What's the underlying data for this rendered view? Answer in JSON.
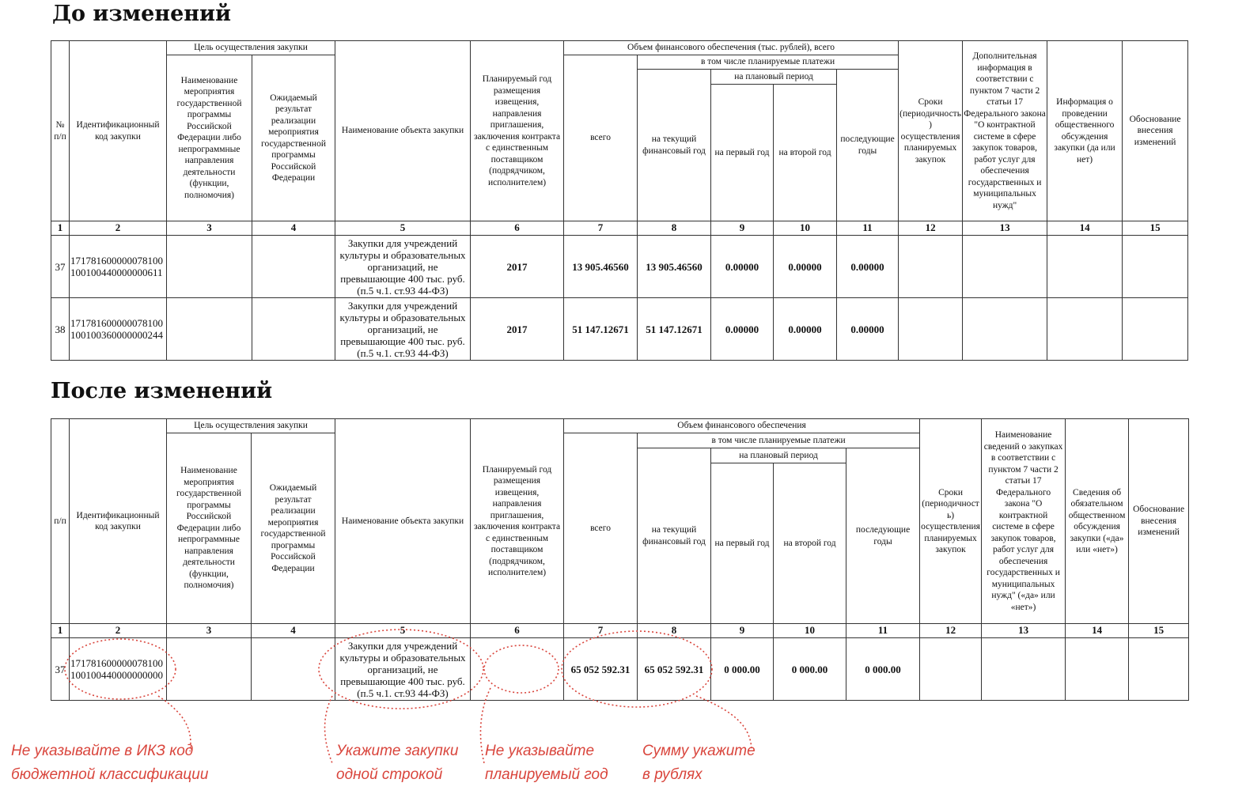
{
  "before": {
    "title": "До изменений",
    "h": {
      "c1": "№ п/п",
      "c2": "Идентификационный код закупки",
      "goal": "Цель осуществления закупки",
      "c3": "Наименование мероприятия государственной программы Российской Федерации либо непрограммные направления деятельности (функции, полномочия)",
      "c4": "Ожидаемый результат реализации мероприятия государственной программы Российской Федерации",
      "c5": "Наименование объекта закупки",
      "c6": "Планируемый год размещения извещения, направления приглашения, заключения контракта с единственным поставщиком (подрядчиком, исполнителем)",
      "fin": "Объем финансового обеспечения (тыс. рублей), всего",
      "incl": "в том числе планируемые платежи",
      "plan": "на плановый период",
      "c7": "всего",
      "c8": "на текущий финансовый год",
      "c9": "на первый год",
      "c10": "на второй год",
      "c11": "последующие годы",
      "c12": "Сроки (периодичность) осуществления планируемых закупок",
      "c13": "Дополнительная информация в соответствии с пунктом 7 части 2 статьи 17 Федерального закона \"О контрактной системе в сфере закупок товаров, работ услуг для обеспечения государственных и муниципальных нужд\"",
      "c14": "Информация о проведении общественного обсуждения закупки (да или нет)",
      "c15": "Обоснование внесения изменений"
    },
    "nums": [
      "1",
      "2",
      "3",
      "4",
      "5",
      "6",
      "7",
      "8",
      "9",
      "10",
      "11",
      "12",
      "13",
      "14",
      "15"
    ],
    "rows": [
      {
        "n": "37",
        "code": "171781600000078100 100100440000000611",
        "object": "Закупки для учреждений культуры и образовательных организаций, не превышающие 400 тыс. руб. (п.5 ч.1. ст.93 44-ФЗ)",
        "year": "2017",
        "total": "13 905.46560",
        "current": "13 905.46560",
        "first": "0.00000",
        "second": "0.00000",
        "later": "0.00000"
      },
      {
        "n": "38",
        "code": "171781600000078100 100100360000000244",
        "object": "Закупки для учреждений культуры и образовательных организаций, не превышающие 400 тыс. руб. (п.5 ч.1. ст.93 44-ФЗ)",
        "year": "2017",
        "total": "51 147.12671",
        "current": "51 147.12671",
        "first": "0.00000",
        "second": "0.00000",
        "later": "0.00000"
      }
    ]
  },
  "after": {
    "title": "После изменений",
    "h": {
      "c1": "п/п",
      "c2": "Идентификационный код закупки",
      "goal": "Цель осуществления закупки",
      "c3": "Наименование мероприятия государственной программы Российской Федерации либо непрограммные направления деятельности (функции, полномочия)",
      "c4": "Ожидаемый результат реализации мероприятия государственной программы Российской Федерации",
      "c5": "Наименование объекта закупки",
      "c6": "Планируемый год размещения извещения, направления приглашения, заключения контракта с единственным поставщиком (подрядчиком, исполнителем)",
      "fin": "Объем финансового обеспечения",
      "incl": "в том числе планируемые платежи",
      "plan": "на плановый период",
      "c7": "всего",
      "c8": "на текущий финансовый год",
      "c9": "на первый год",
      "c10": "на второй год",
      "c11": "последующие годы",
      "c12": "Сроки (периодичность) осуществления планируемых закупок",
      "c13": "Наименование сведений о закупках в соответствии с пунктом 7 части 2 статьи 17 Федерального закона \"О контрактной системе в сфере закупок товаров, работ услуг для обеспечения государственных и муниципальных нужд\" («да» или «нет»)",
      "c14": "Сведения об обязательном общественном обсуждения закупки («да» или «нет»)",
      "c15": "Обоснование внесения изменений"
    },
    "nums": [
      "1",
      "2",
      "3",
      "4",
      "5",
      "6",
      "7",
      "8",
      "9",
      "10",
      "11",
      "12",
      "13",
      "14",
      "15"
    ],
    "rows": [
      {
        "n": "37",
        "code": "171781600000078100 100100440000000000",
        "object": "Закупки для учреждений культуры и образовательных организаций, не превышающие 400 тыс. руб. (п.5 ч.1. ст.93 44-ФЗ)",
        "year": "",
        "total": "65 052 592.31",
        "current": "65 052 592.31",
        "first": "0 000.00",
        "second": "0 000.00",
        "later": "0 000.00"
      }
    ]
  },
  "notes": [
    {
      "l1": "Не указывайте в ИКЗ код",
      "l2": "бюджетной классификации"
    },
    {
      "l1": "Укажите закупки",
      "l2": "одной строкой"
    },
    {
      "l1": "Не указывайте",
      "l2": "планируемый год"
    },
    {
      "l1": "Сумму укажите",
      "l2": "в рублях"
    }
  ],
  "colors": {
    "annotation": "#d9453c",
    "border": "#333333"
  }
}
